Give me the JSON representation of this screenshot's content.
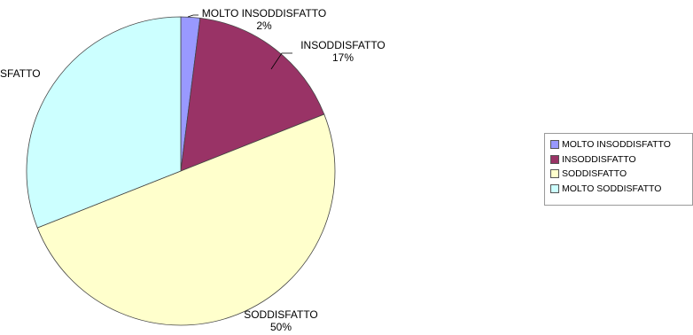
{
  "chart_data": {
    "type": "pie",
    "categories": [
      "MOLTO INSODDISFATTO",
      "INSODDISFATTO",
      "SODDISFATTO",
      "MOLTO SODDISFATTO"
    ],
    "values": [
      2,
      17,
      50,
      31
    ],
    "colors": [
      "#9999ff",
      "#993366",
      "#ffffcc",
      "#ccffff"
    ],
    "slice_labels": [
      {
        "name": "MOLTO INSODDISFATTO",
        "pct": "2%"
      },
      {
        "name": "INSODDISFATTO",
        "pct": "17%"
      },
      {
        "name": "SODDISFATTO",
        "pct": "50%"
      },
      {
        "name": "SFATTO",
        "pct": ""
      }
    ],
    "legend": {
      "position": "right",
      "entries": [
        "MOLTO INSODDISFATTO",
        "INSODDISFATTO",
        "SODDISFATTO",
        "MOLTO SODDISFATTO"
      ]
    }
  }
}
